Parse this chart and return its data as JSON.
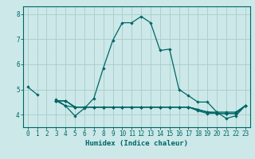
{
  "xlabel": "Humidex (Indice chaleur)",
  "xlim": [
    -0.5,
    23.5
  ],
  "ylim": [
    3.5,
    8.3
  ],
  "xticks": [
    0,
    1,
    2,
    3,
    4,
    5,
    6,
    7,
    8,
    9,
    10,
    11,
    12,
    13,
    14,
    15,
    16,
    17,
    18,
    19,
    20,
    21,
    22,
    23
  ],
  "yticks": [
    4,
    5,
    6,
    7,
    8
  ],
  "bg_color": "#cce8e8",
  "line_color": "#006666",
  "grid_color": "#aacccc",
  "lines": [
    [
      5.1,
      4.8,
      null,
      4.6,
      4.35,
      3.95,
      4.25,
      4.65,
      5.85,
      6.95,
      7.65,
      7.65,
      7.9,
      7.65,
      6.55,
      6.6,
      5.0,
      4.75,
      4.5,
      4.5,
      4.1,
      3.85,
      3.95,
      4.35
    ],
    [
      null,
      null,
      null,
      4.55,
      4.35,
      4.3,
      4.3,
      4.3,
      4.3,
      4.3,
      4.3,
      4.3,
      4.3,
      4.3,
      4.3,
      4.3,
      4.3,
      4.3,
      4.2,
      4.1,
      4.1,
      4.1,
      4.1,
      4.35
    ],
    [
      null,
      null,
      null,
      4.55,
      4.55,
      4.3,
      4.3,
      4.3,
      4.3,
      4.3,
      4.3,
      4.3,
      4.3,
      4.3,
      4.3,
      4.3,
      4.3,
      4.3,
      4.2,
      4.1,
      4.05,
      4.05,
      4.05,
      4.35
    ],
    [
      null,
      null,
      null,
      4.55,
      4.55,
      4.3,
      4.3,
      4.3,
      4.3,
      4.3,
      4.3,
      4.3,
      4.3,
      4.3,
      4.3,
      4.3,
      4.3,
      4.3,
      4.2,
      4.1,
      4.05,
      4.05,
      4.05,
      4.35
    ],
    [
      null,
      null,
      null,
      4.55,
      4.55,
      4.3,
      4.3,
      4.3,
      4.3,
      4.3,
      4.3,
      4.3,
      4.3,
      4.3,
      4.3,
      4.3,
      4.3,
      4.3,
      4.15,
      4.05,
      4.05,
      4.05,
      4.05,
      4.35
    ]
  ]
}
